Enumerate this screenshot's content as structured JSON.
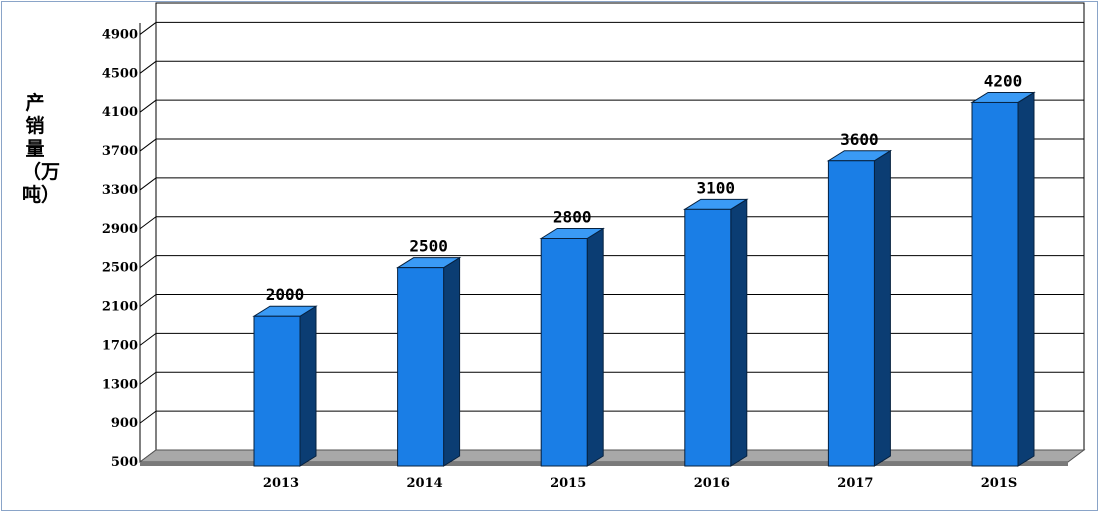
{
  "chart_data": {
    "type": "bar",
    "categories": [
      "2013",
      "2014",
      "2015",
      "2016",
      "2017",
      "201S"
    ],
    "values": [
      2000,
      2500,
      2800,
      3100,
      3600,
      4200
    ],
    "data_labels": [
      "2000",
      "2500",
      "2800",
      "3100",
      "3600",
      "4200"
    ],
    "ylabel": "产销量（万吨）",
    "yticks": [
      500,
      900,
      1300,
      1700,
      2100,
      2500,
      2900,
      3300,
      3700,
      4100,
      4500,
      4900
    ],
    "ylim": [
      500,
      5100
    ],
    "grid": true,
    "bar_color": "#1a7ee6",
    "bar_side_color": "#0b3d73",
    "floor_color": "#a8a8a8"
  }
}
